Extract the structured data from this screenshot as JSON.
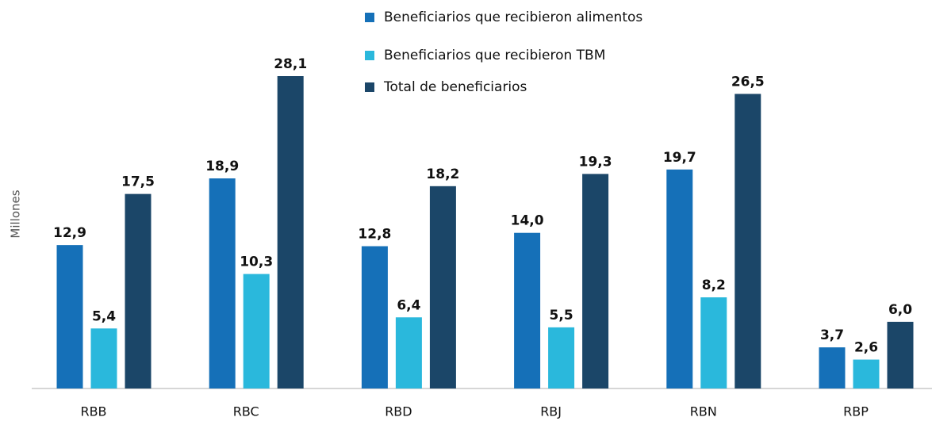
{
  "chart_data": {
    "type": "bar",
    "y_label": "Millones",
    "categories": [
      "RBB",
      "RBC",
      "RBD",
      "RBJ",
      "RBN",
      "RBP"
    ],
    "series": [
      {
        "name": "Beneficiarios que recibieron alimentos",
        "color": "#1570b8",
        "values": [
          12.9,
          18.9,
          12.8,
          14.0,
          19.7,
          3.7
        ],
        "value_labels": [
          "12,9",
          "18,9",
          "12,8",
          "14,0",
          "19,7",
          "3,7"
        ]
      },
      {
        "name": "Beneficiarios que recibieron TBM",
        "color": "#2ab8dc",
        "values": [
          5.4,
          10.3,
          6.4,
          5.5,
          8.2,
          2.6
        ],
        "value_labels": [
          "5,4",
          "10,3",
          "6,4",
          "5,5",
          "8,2",
          "2,6"
        ]
      },
      {
        "name": "Total de beneficiarios",
        "color": "#1b4668",
        "values": [
          17.5,
          28.1,
          18.2,
          19.3,
          26.5,
          6.0
        ],
        "value_labels": [
          "17,5",
          "28,1",
          "18,2",
          "19,3",
          "26,5",
          "6,0"
        ]
      }
    ]
  }
}
